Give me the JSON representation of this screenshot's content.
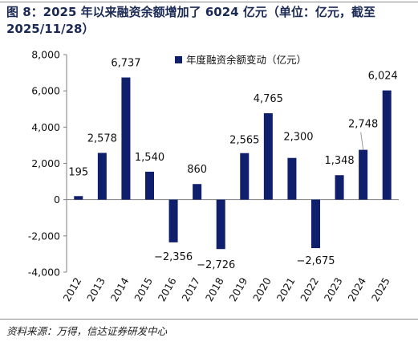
{
  "title": "图 8：2025 年以来融资余额增加了 6024 亿元（单位：亿元，截至 2025/11/28）",
  "source": "资料来源：万得，信达证券研发中心",
  "chart_data": {
    "type": "bar",
    "title": "图 8：2025 年以来融资余额增加了 6024 亿元（单位：亿元，截至 2025/11/28）",
    "categories": [
      "2012",
      "2013",
      "2014",
      "2015",
      "2016",
      "2017",
      "2018",
      "2019",
      "2020",
      "2021",
      "2022",
      "2023",
      "2024",
      "2025"
    ],
    "series": [
      {
        "name": "年度融资余额变动（亿元）",
        "values": [
          195,
          2578,
          6737,
          1540,
          -2356,
          860,
          -2726,
          2565,
          4765,
          2300,
          -2675,
          1348,
          2748,
          6024
        ]
      }
    ],
    "data_labels": [
      "195",
      "2,578",
      "6,737",
      "1,540",
      "−2,356",
      "860",
      "−2,726",
      "2,565",
      "4,765",
      "2,300",
      "−2,675",
      "1,348",
      "2,748",
      "6,024"
    ],
    "ylim": [
      -4000,
      8000
    ],
    "yticks": [
      -4000,
      -2000,
      0,
      2000,
      4000,
      6000,
      8000
    ],
    "ytick_labels": [
      "-4,000",
      "-2,000",
      "0",
      "2,000",
      "4,000",
      "6,000",
      "8,000"
    ],
    "xlabel": "",
    "ylabel": "",
    "legend_position": "top-center",
    "grid": false,
    "bar_color": "#0f1f6b"
  }
}
